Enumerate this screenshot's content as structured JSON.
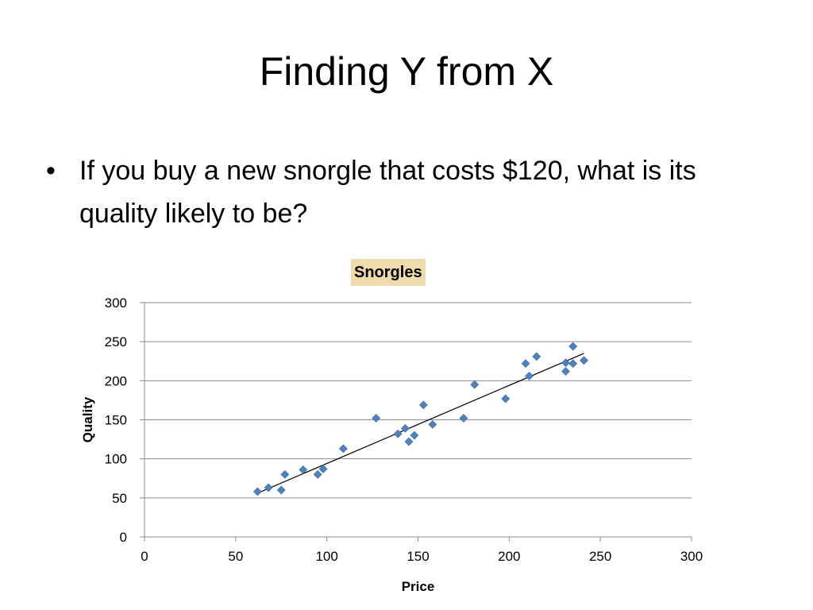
{
  "slide": {
    "title": "Finding Y from X",
    "bullet": "If you buy a new snorgle that costs $120, what is its quality likely to be?"
  },
  "chart_data": {
    "type": "scatter",
    "title": "Snorgles",
    "xlabel": "Price",
    "ylabel": "Quality",
    "xlim": [
      0,
      300
    ],
    "ylim": [
      0,
      300
    ],
    "xticks": [
      0,
      50,
      100,
      150,
      200,
      250,
      300
    ],
    "yticks": [
      0,
      50,
      100,
      150,
      200,
      250,
      300
    ],
    "grid": "horizontal",
    "legend": "none",
    "marker_color": "#4f81bd",
    "trendline": {
      "x": [
        62,
        241
      ],
      "y": [
        56,
        235
      ]
    },
    "series": [
      {
        "x": [
          62,
          68,
          75,
          77,
          87,
          95,
          98,
          109,
          127,
          139,
          143,
          145,
          148,
          153,
          158,
          175,
          181,
          198,
          209,
          211,
          215,
          231,
          231,
          235,
          235,
          241
        ],
        "y": [
          58,
          63,
          60,
          80,
          86,
          80,
          87,
          113,
          152,
          132,
          139,
          122,
          130,
          169,
          144,
          152,
          195,
          177,
          222,
          206,
          231,
          212,
          223,
          244,
          222,
          226
        ]
      }
    ]
  }
}
